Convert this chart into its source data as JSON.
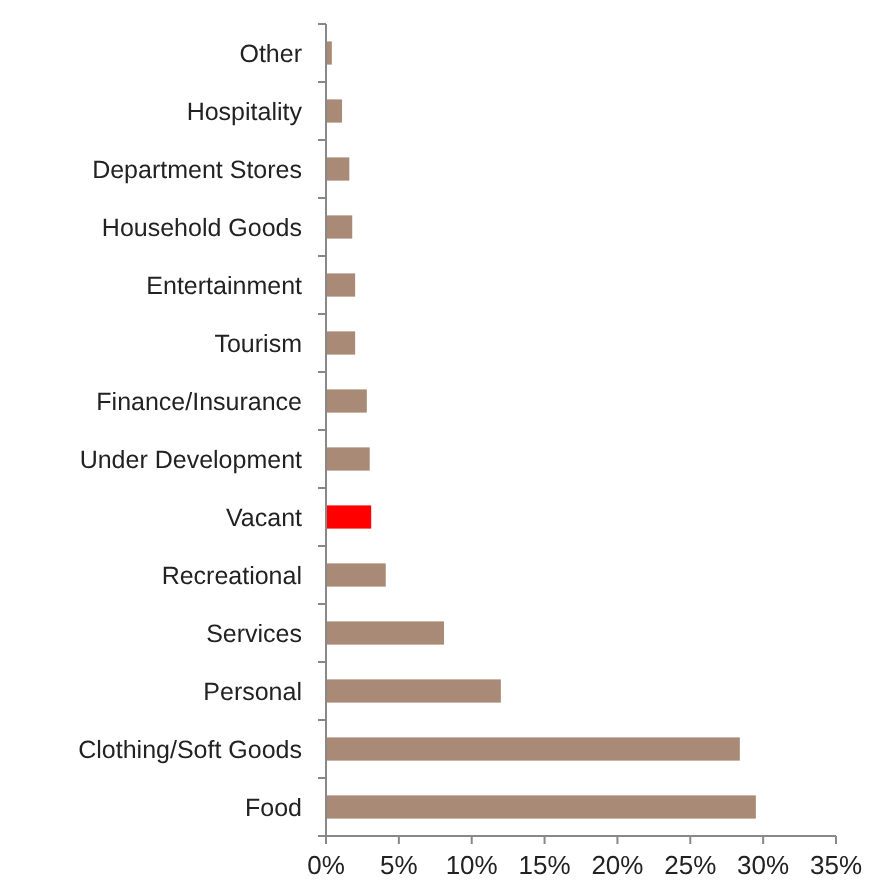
{
  "chart_data": {
    "type": "bar",
    "orientation": "horizontal",
    "categories": [
      "Other",
      "Hospitality",
      "Department Stores",
      "Household Goods",
      "Entertainment",
      "Tourism",
      "Finance/Insurance",
      "Under Development",
      "Vacant",
      "Recreational",
      "Services",
      "Personal",
      "Clothing/Soft Goods",
      "Food"
    ],
    "values": [
      0.4,
      1.1,
      1.6,
      1.8,
      2.0,
      2.0,
      2.8,
      3.0,
      3.1,
      4.1,
      8.1,
      12.0,
      28.4,
      29.5
    ],
    "colors": [
      "#a98a76",
      "#a98a76",
      "#a98a76",
      "#a98a76",
      "#a98a76",
      "#a98a76",
      "#a98a76",
      "#a98a76",
      "#ff0000",
      "#a98a76",
      "#a98a76",
      "#a98a76",
      "#a98a76",
      "#a98a76"
    ],
    "xlim": [
      0,
      35
    ],
    "xticks": [
      {
        "value": 0,
        "label": "0%"
      },
      {
        "value": 5,
        "label": "5%"
      },
      {
        "value": 10,
        "label": "10%"
      },
      {
        "value": 15,
        "label": "15%"
      },
      {
        "value": 20,
        "label": "20%"
      },
      {
        "value": 25,
        "label": "25%"
      },
      {
        "value": 30,
        "label": "30%"
      },
      {
        "value": 35,
        "label": "35%"
      }
    ],
    "grid": false
  }
}
